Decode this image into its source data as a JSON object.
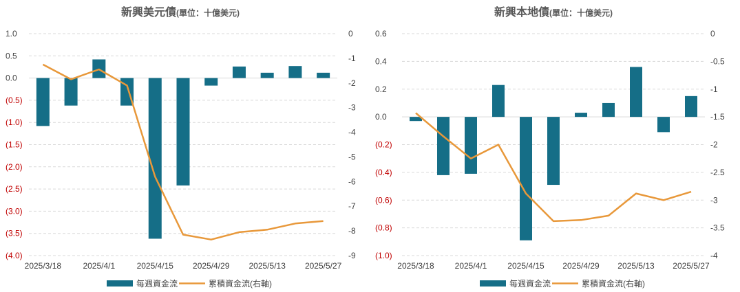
{
  "colors": {
    "bar": "#156e87",
    "line": "#e8983a",
    "negative_tick": "#c00000",
    "text": "#404040",
    "title": "#595959"
  },
  "legend": {
    "bar_label": "每週資金流",
    "line_label": "累積資金流(右軸)"
  },
  "chart_data": [
    {
      "type": "bar",
      "title": "新興美元債",
      "unit": "(單位：十億美元)",
      "x_labels": [
        "2025/3/18",
        "2025/4/1",
        "2025/4/15",
        "2025/4/29",
        "2025/5/13",
        "2025/5/27"
      ],
      "left_axis": {
        "ylim": [
          -4.0,
          1.0
        ],
        "ticks": [
          "1.0",
          "0.5",
          "0.0",
          "(0.5)",
          "(1.0)",
          "(1.5)",
          "(2.0)",
          "(2.5)",
          "(3.0)",
          "(3.5)",
          "(4.0)"
        ]
      },
      "right_axis": {
        "ylim": [
          -9,
          0
        ],
        "ticks": [
          "0",
          "-1",
          "-2",
          "-3",
          "-4",
          "-5",
          "-6",
          "-7",
          "-8",
          "-9"
        ]
      },
      "series": [
        {
          "name": "每週資金流",
          "type": "bar",
          "axis": "left",
          "values": [
            -1.08,
            -0.62,
            0.42,
            -0.62,
            -3.62,
            -2.42,
            -0.17,
            0.26,
            0.12,
            0.27,
            0.12
          ]
        },
        {
          "name": "累積資金流(右軸)",
          "type": "line",
          "axis": "right",
          "values": [
            -1.25,
            -1.85,
            -1.45,
            -2.1,
            -5.8,
            -8.15,
            -8.35,
            -8.05,
            -7.95,
            -7.7,
            -7.6
          ]
        }
      ]
    },
    {
      "type": "bar",
      "title": "新興本地債",
      "unit": "(單位：十億美元)",
      "x_labels": [
        "2025/3/18",
        "2025/4/1",
        "2025/4/15",
        "2025/4/29",
        "2025/5/13",
        "2025/5/27"
      ],
      "left_axis": {
        "ylim": [
          -1.0,
          0.6
        ],
        "ticks": [
          "0.6",
          "0.4",
          "0.2",
          "0.0",
          "(0.2)",
          "(0.4)",
          "(0.6)",
          "(0.8)",
          "(1.0)"
        ]
      },
      "right_axis": {
        "ylim": [
          -4,
          0
        ],
        "ticks": [
          "0",
          "-0.5",
          "-1",
          "-1.5",
          "-2",
          "-2.5",
          "-3",
          "-3.5",
          "-4"
        ]
      },
      "series": [
        {
          "name": "每週資金流",
          "type": "bar",
          "axis": "left",
          "values": [
            -0.03,
            -0.42,
            -0.41,
            0.23,
            -0.89,
            -0.49,
            0.03,
            0.1,
            0.36,
            -0.11,
            0.15
          ]
        },
        {
          "name": "累積資金流(右軸)",
          "type": "line",
          "axis": "right",
          "values": [
            -1.43,
            -1.85,
            -2.25,
            -2.0,
            -2.88,
            -3.38,
            -3.36,
            -3.28,
            -2.88,
            -3.0,
            -2.85
          ]
        }
      ]
    }
  ]
}
